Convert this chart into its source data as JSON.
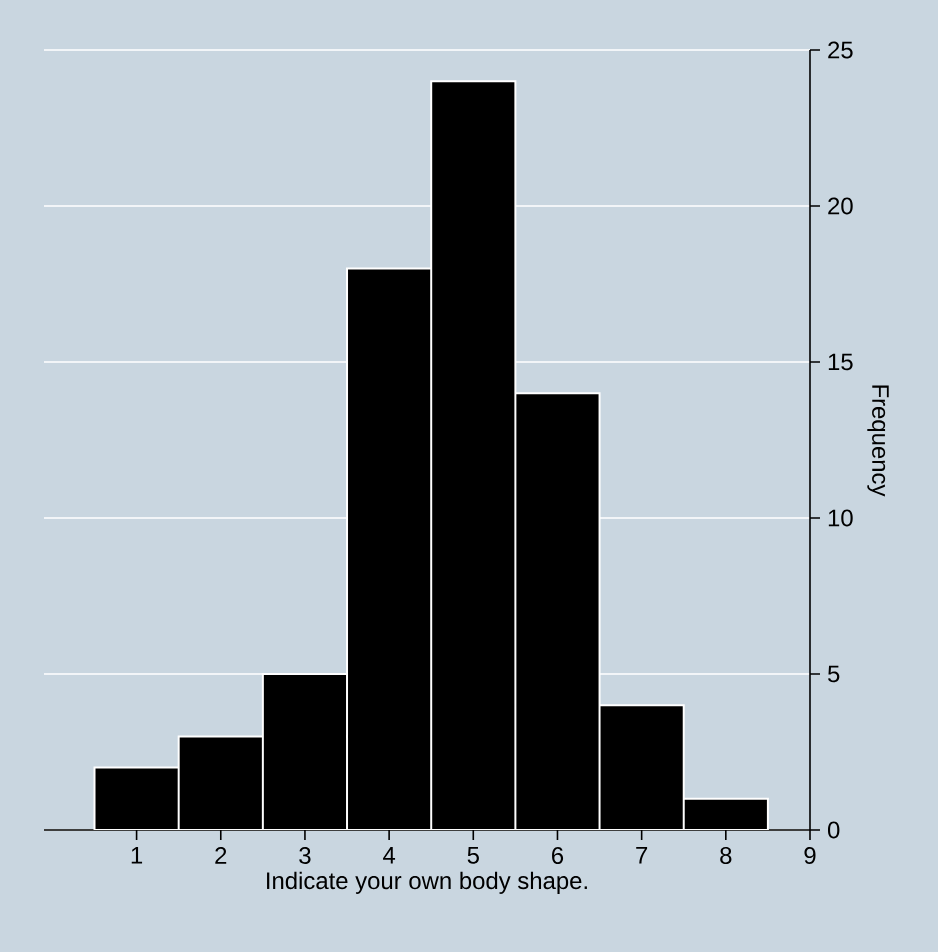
{
  "chart_data": {
    "type": "histogram",
    "xlabel": "Indicate your own body shape.",
    "ylabel": "Frequency",
    "bins": [
      0.5,
      1.5,
      2.5,
      3.5,
      4.5,
      5.5,
      6.5,
      7.5,
      8.5
    ],
    "values": [
      2,
      3,
      5,
      18,
      24,
      14,
      4,
      1
    ],
    "color": "#000000",
    "xlim": [
      -0.1,
      9
    ],
    "xticks": [
      1,
      2,
      3,
      4,
      5,
      6,
      7,
      8,
      9
    ],
    "ylim": [
      0,
      25
    ],
    "yticks": [
      0,
      5,
      10,
      15,
      20,
      25
    ],
    "grid": "y"
  }
}
